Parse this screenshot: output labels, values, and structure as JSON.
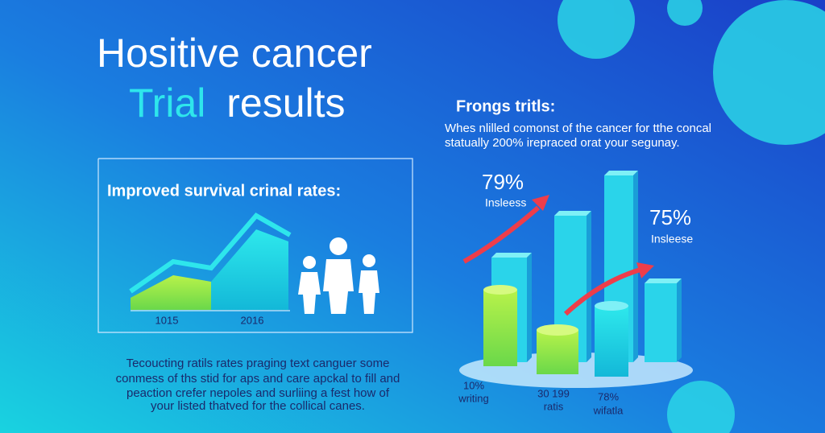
{
  "header": {
    "title_line1": "Hositive cancer",
    "title_highlight": "Trial",
    "title_rest": "results"
  },
  "left_panel": {
    "heading": "Improved survival crinal rates:",
    "axis_labels": [
      "1015",
      "2016"
    ]
  },
  "right_panel": {
    "heading": "Frongs tritls:",
    "description": [
      "Whes nlilled comonst of the cancer for tthe concal",
      "statually 200% irepraced orat your segunay."
    ],
    "callouts": [
      {
        "value": "79%",
        "label": "Insleess"
      },
      {
        "value": "75%",
        "label": "Insleese"
      }
    ],
    "bottom_labels": [
      {
        "value": "10%",
        "label": "writing"
      },
      {
        "value": "30 199",
        "label": "ratis"
      },
      {
        "value": "78%",
        "label": "wifatla"
      }
    ]
  },
  "body_text": [
    "Tecoucting ratils rates praging text canguer some",
    "conmess of ths stid for aps and care apckal to fill and",
    "peaction crefer nepoles and surliing a fest how of",
    "your listed thatved for the collical canes."
  ]
}
